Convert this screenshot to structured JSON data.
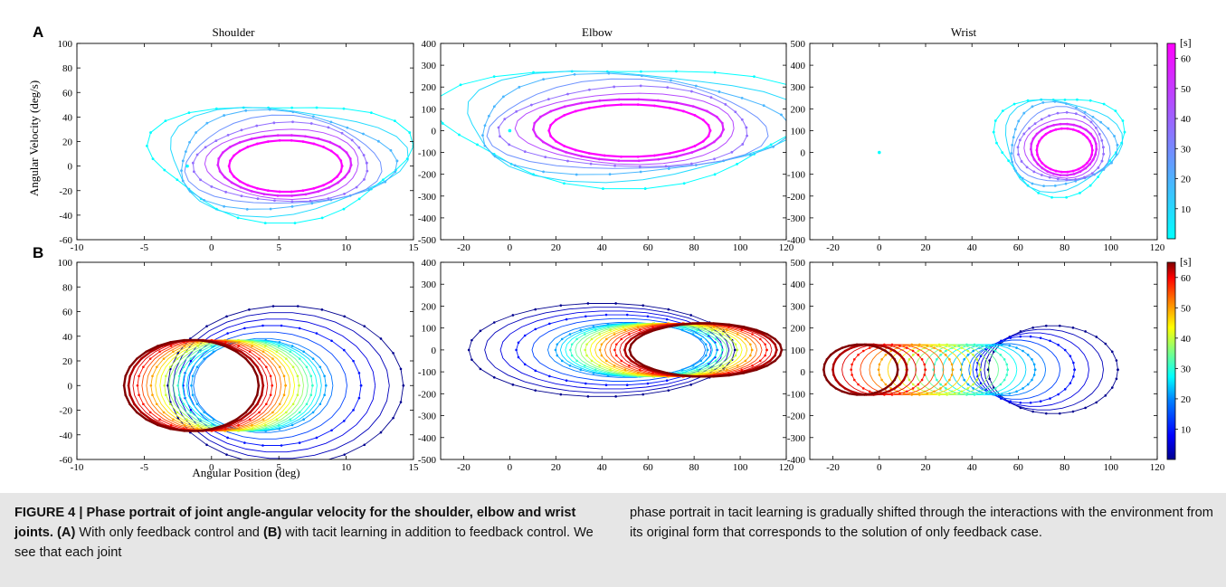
{
  "figure": {
    "panel_labels": [
      "A",
      "B"
    ],
    "column_titles": [
      "Shoulder",
      "Elbow",
      "Wrist"
    ],
    "ylabel": "Angular Velocity (deg/s)",
    "xlabel": "Angular Position (deg)",
    "colorbar_unit": "[s]",
    "colorbar_ticks": [
      "10",
      "20",
      "30",
      "40",
      "50",
      "60"
    ],
    "colormap_A": [
      "#00ffff",
      "#ff00ff"
    ],
    "colormap_B": [
      "#00008f",
      "#0000ff",
      "#0080ff",
      "#00ffff",
      "#80ff80",
      "#ffff00",
      "#ff8000",
      "#ff0000",
      "#800000"
    ]
  },
  "chart_data": [
    {
      "type": "scatter",
      "panel": "A",
      "title": "Shoulder",
      "ylabel": "Angular Velocity (deg/s)",
      "xlim": [
        -10,
        15
      ],
      "ylim": [
        -60,
        100
      ],
      "xticks": [
        "-10",
        "-5",
        "0",
        "5",
        "10",
        "15"
      ],
      "yticks": [
        "-60",
        "-40",
        "-20",
        "0",
        "20",
        "40",
        "60",
        "80",
        "100"
      ],
      "series": [
        {
          "center": [
            5.5,
            0
          ],
          "final_center": [
            5.5,
            0
          ],
          "final_radius": [
            4.2,
            21
          ],
          "initial_point": [
            -1.8,
            0
          ]
        }
      ]
    },
    {
      "type": "scatter",
      "panel": "A",
      "title": "Elbow",
      "xlim": [
        -30,
        120
      ],
      "ylim": [
        -500,
        400
      ],
      "xticks": [
        "-20",
        "0",
        "20",
        "40",
        "60",
        "80",
        "100",
        "120"
      ],
      "yticks": [
        "-500",
        "-400",
        "-300",
        "-200",
        "-100",
        "0",
        "100",
        "200",
        "300",
        "400"
      ],
      "series": [
        {
          "center": [
            52,
            0
          ],
          "final_center": [
            52,
            0
          ],
          "final_radius": [
            35,
            120
          ],
          "initial_point": [
            0,
            0
          ]
        }
      ]
    },
    {
      "type": "scatter",
      "panel": "A",
      "title": "Wrist",
      "xlim": [
        -30,
        120
      ],
      "ylim": [
        -400,
        500
      ],
      "xticks": [
        "-20",
        "0",
        "20",
        "40",
        "60",
        "80",
        "100",
        "120"
      ],
      "yticks": [
        "-400",
        "-300",
        "-200",
        "-100",
        "0",
        "100",
        "200",
        "300",
        "400",
        "500"
      ],
      "series": [
        {
          "center": [
            80,
            10
          ],
          "final_center": [
            80,
            10
          ],
          "final_radius": [
            12,
            100
          ],
          "initial_point": [
            0,
            0
          ]
        }
      ]
    },
    {
      "type": "scatter",
      "panel": "B",
      "title": "",
      "xlabel": "Angular Position (deg)",
      "ylabel": "Angular Velocity (deg/s)",
      "xlim": [
        -10,
        15
      ],
      "ylim": [
        -60,
        100
      ],
      "xticks": [
        "-10",
        "-5",
        "0",
        "5",
        "10",
        "15"
      ],
      "yticks": [
        "-60",
        "-40",
        "-20",
        "0",
        "20",
        "40",
        "60",
        "80",
        "100"
      ],
      "series": [
        {
          "center": [
            5.5,
            0
          ],
          "final_center": [
            -1.5,
            0
          ],
          "final_radius": [
            5,
            37
          ],
          "initial_point": [
            -1.8,
            0
          ]
        }
      ]
    },
    {
      "type": "scatter",
      "panel": "B",
      "title": "",
      "xlim": [
        -30,
        120
      ],
      "ylim": [
        -500,
        400
      ],
      "xticks": [
        "-20",
        "0",
        "20",
        "40",
        "60",
        "80",
        "100",
        "120"
      ],
      "yticks": [
        "-500",
        "-400",
        "-300",
        "-200",
        "-100",
        "0",
        "100",
        "200",
        "300",
        "400"
      ],
      "series": [
        {
          "center": [
            40,
            0
          ],
          "final_center": [
            85,
            0
          ],
          "final_radius": [
            33,
            122
          ],
          "initial_point": [
            0,
            0
          ]
        }
      ]
    },
    {
      "type": "scatter",
      "panel": "B",
      "title": "",
      "xlim": [
        -30,
        120
      ],
      "ylim": [
        -400,
        500
      ],
      "xticks": [
        "-20",
        "0",
        "20",
        "40",
        "60",
        "80",
        "100",
        "120"
      ],
      "yticks": [
        "-400",
        "-300",
        "-200",
        "-100",
        "0",
        "100",
        "200",
        "300",
        "400",
        "500"
      ],
      "series": [
        {
          "center": [
            75,
            10
          ],
          "final_center": [
            -8,
            10
          ],
          "final_radius": [
            16,
            115
          ],
          "initial_point": [
            0,
            0
          ]
        }
      ]
    }
  ],
  "caption": {
    "label": "FIGURE 4 |",
    "title": " Phase portrait of joint angle-angular velocity for the shoulder, elbow and wrist joints.",
    "a_ref": "(A)",
    "text1": " With only feedback control and ",
    "b_ref": "(B)",
    "text2": " with tacit learning in addition to feedback control. We see that each joint",
    "right": "phase portrait in tacit learning is gradually shifted through the interactions with the environment from its original form that corresponds to the solution of only feedback case."
  }
}
